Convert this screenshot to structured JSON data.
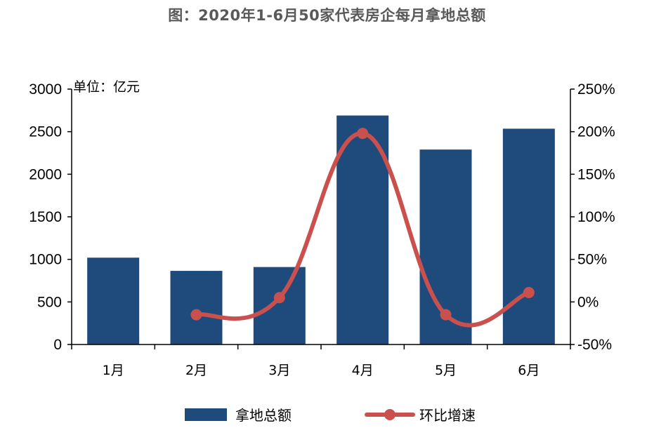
{
  "chart_data": {
    "type": "bar+line",
    "title": "图：2020年1-6月50家代表房企每月拿地总额",
    "unit_label": "单位：亿元",
    "categories": [
      "1月",
      "2月",
      "3月",
      "4月",
      "5月",
      "6月"
    ],
    "series": [
      {
        "name": "拿地总额",
        "type": "bar",
        "axis": "left",
        "values": [
          1020,
          865,
          910,
          2690,
          2290,
          2535
        ]
      },
      {
        "name": "环比增速",
        "type": "line",
        "axis": "right",
        "values": [
          null,
          -15,
          5,
          198,
          -15,
          11
        ]
      }
    ],
    "y_left": {
      "min": 0,
      "max": 3000,
      "step": 500,
      "ticks": [
        "0",
        "500",
        "1000",
        "1500",
        "2000",
        "2500",
        "3000"
      ]
    },
    "y_right": {
      "min": -50,
      "max": 250,
      "step": 50,
      "ticks": [
        "-50%",
        "0%",
        "50%",
        "100%",
        "150%",
        "200%",
        "250%"
      ]
    },
    "colors": {
      "bar": "#1f4a7c",
      "line": "#c9504d",
      "axis": "#000000"
    },
    "legend_position": "bottom"
  }
}
